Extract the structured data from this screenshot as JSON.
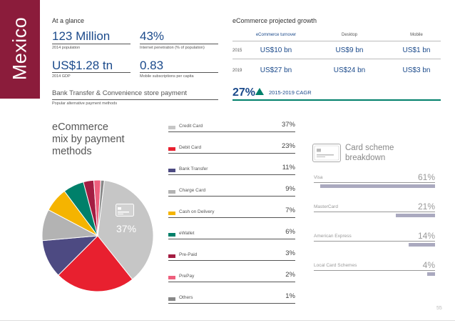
{
  "country": "Mexico",
  "glance": {
    "title": "At a glance",
    "population": {
      "value": "123 Million",
      "label": "2014 population"
    },
    "internet": {
      "value": "43%",
      "label": "Internet penetration (% of population)"
    },
    "gdp": {
      "value": "US$1.28 tn",
      "label": "2014 GDP"
    },
    "mobile": {
      "value": "0.83",
      "label": "Mobile subscriptions per capita"
    },
    "payment_methods": {
      "value": "Bank Transfer & Convenience store payment",
      "label": "Popular alternative payment methods"
    }
  },
  "ecommerce": {
    "title": "eCommerce projected growth",
    "headers": [
      "eCommerce turnover",
      "Desktop",
      "Mobile"
    ],
    "rows": [
      {
        "year": "2015",
        "values": [
          "US$10 bn",
          "US$9 bn",
          "US$1 bn"
        ]
      },
      {
        "year": "2019",
        "values": [
          "US$27 bn",
          "US$24 bn",
          "US$3 bn"
        ]
      }
    ],
    "cagr_value": "27%",
    "cagr_label": "2015-2019 CAGR"
  },
  "mix": {
    "title_lines": [
      "eCommerce",
      "mix by payment",
      "methods"
    ],
    "pie_label": "37%"
  },
  "chart_data": {
    "type": "pie",
    "categories": [
      "Credit Card",
      "Debit Card",
      "Bank Transfer",
      "Charge Card",
      "Cash on Delivery",
      "eWallet",
      "Pre-Paid",
      "PrePay",
      "Others"
    ],
    "values": [
      37,
      23,
      11,
      9,
      7,
      6,
      3,
      2,
      1
    ],
    "labels": [
      "37%",
      "23%",
      "11%",
      "9%",
      "7%",
      "6%",
      "3%",
      "2%",
      "1%"
    ],
    "colors": [
      "#c6c6c6",
      "#e8202f",
      "#4d4a82",
      "#b3b3b3",
      "#f5b400",
      "#00806a",
      "#a41d42",
      "#ee5f7d",
      "#888888"
    ]
  },
  "card_scheme": {
    "title_lines": [
      "Card scheme",
      "breakdown"
    ],
    "rows": [
      {
        "label": "Visa",
        "pct": "61%",
        "value": 61
      },
      {
        "label": "MasterCard",
        "pct": "21%",
        "value": 21
      },
      {
        "label": "American Express",
        "pct": "14%",
        "value": 14
      },
      {
        "label": "Local Card Schemes",
        "pct": "4%",
        "value": 4
      }
    ],
    "bar_color": "#aaa9bf"
  },
  "page_number": "55"
}
